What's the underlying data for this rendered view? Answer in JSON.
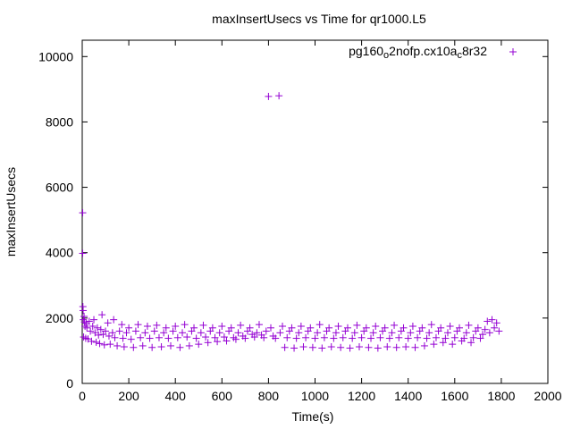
{
  "chart_data": {
    "type": "scatter",
    "title": "maxInsertUsecs vs Time for qr1000.L5",
    "xlabel": "Time(s)",
    "ylabel": "maxInsertUsecs",
    "xlim": [
      0,
      2000
    ],
    "ylim": [
      0,
      10500
    ],
    "xticks": [
      "0",
      "200",
      "400",
      "600",
      "800",
      "1000",
      "1200",
      "1400",
      "1600",
      "1800",
      "2000"
    ],
    "xtick_values": [
      0,
      200,
      400,
      600,
      800,
      1000,
      1200,
      1400,
      1600,
      1800,
      2000
    ],
    "yticks": [
      "0",
      "2000",
      "4000",
      "6000",
      "8000",
      "10000"
    ],
    "ytick_values": [
      0,
      2000,
      4000,
      6000,
      8000,
      10000
    ],
    "grid": false,
    "legend_position": "top-right",
    "marker": "+",
    "series": [
      {
        "name": "pg160_o2nofp.cx10a_c8r32",
        "name_parts": [
          "pg160",
          "o",
          "2nofp.cx10a",
          "c",
          "8r32"
        ],
        "color": "#9400d3",
        "points": [
          [
            2,
            5220
          ],
          [
            2,
            3980
          ],
          [
            3,
            2350
          ],
          [
            4,
            2230
          ],
          [
            5,
            1950
          ],
          [
            6,
            1420
          ],
          [
            8,
            2050
          ],
          [
            10,
            1880
          ],
          [
            12,
            1750
          ],
          [
            15,
            1380
          ],
          [
            18,
            1830
          ],
          [
            20,
            1700
          ],
          [
            25,
            1360
          ],
          [
            30,
            1900
          ],
          [
            35,
            1600
          ],
          [
            40,
            1290
          ],
          [
            45,
            1750
          ],
          [
            50,
            1950
          ],
          [
            55,
            1550
          ],
          [
            60,
            1260
          ],
          [
            65,
            1700
          ],
          [
            70,
            1480
          ],
          [
            75,
            1220
          ],
          [
            80,
            1650
          ],
          [
            85,
            2100
          ],
          [
            90,
            1500
          ],
          [
            95,
            1180
          ],
          [
            100,
            1600
          ],
          [
            110,
            1850
          ],
          [
            115,
            1450
          ],
          [
            120,
            1200
          ],
          [
            130,
            1550
          ],
          [
            135,
            1950
          ],
          [
            140,
            1400
          ],
          [
            150,
            1150
          ],
          [
            160,
            1600
          ],
          [
            170,
            1800
          ],
          [
            175,
            1380
          ],
          [
            180,
            1120
          ],
          [
            190,
            1550
          ],
          [
            200,
            1700
          ],
          [
            210,
            1350
          ],
          [
            220,
            1100
          ],
          [
            230,
            1600
          ],
          [
            240,
            1800
          ],
          [
            250,
            1400
          ],
          [
            260,
            1150
          ],
          [
            270,
            1550
          ],
          [
            280,
            1750
          ],
          [
            290,
            1380
          ],
          [
            300,
            1100
          ],
          [
            310,
            1600
          ],
          [
            320,
            1780
          ],
          [
            330,
            1400
          ],
          [
            340,
            1120
          ],
          [
            350,
            1550
          ],
          [
            360,
            1700
          ],
          [
            370,
            1380
          ],
          [
            380,
            1150
          ],
          [
            390,
            1600
          ],
          [
            400,
            1750
          ],
          [
            410,
            1400
          ],
          [
            420,
            1100
          ],
          [
            430,
            1550
          ],
          [
            440,
            1800
          ],
          [
            450,
            1420
          ],
          [
            460,
            1150
          ],
          [
            470,
            1600
          ],
          [
            480,
            1700
          ],
          [
            490,
            1380
          ],
          [
            500,
            1200
          ],
          [
            510,
            1550
          ],
          [
            520,
            1780
          ],
          [
            530,
            1420
          ],
          [
            540,
            1250
          ],
          [
            550,
            1600
          ],
          [
            560,
            1700
          ],
          [
            570,
            1400
          ],
          [
            580,
            1280
          ],
          [
            590,
            1550
          ],
          [
            600,
            1750
          ],
          [
            610,
            1420
          ],
          [
            620,
            1300
          ],
          [
            630,
            1600
          ],
          [
            640,
            1700
          ],
          [
            650,
            1400
          ],
          [
            660,
            1350
          ],
          [
            670,
            1550
          ],
          [
            680,
            1780
          ],
          [
            690,
            1450
          ],
          [
            700,
            1380
          ],
          [
            710,
            1600
          ],
          [
            720,
            1700
          ],
          [
            730,
            1500
          ],
          [
            740,
            1420
          ],
          [
            750,
            1550
          ],
          [
            760,
            1800
          ],
          [
            770,
            1480
          ],
          [
            780,
            1400
          ],
          [
            790,
            1600
          ],
          [
            800,
            8780
          ],
          [
            810,
            1700
          ],
          [
            820,
            1450
          ],
          [
            830,
            1380
          ],
          [
            845,
            8800
          ],
          [
            850,
            1550
          ],
          [
            860,
            1750
          ],
          [
            870,
            1100
          ],
          [
            880,
            1400
          ],
          [
            890,
            1600
          ],
          [
            900,
            1700
          ],
          [
            910,
            1080
          ],
          [
            920,
            1380
          ],
          [
            930,
            1550
          ],
          [
            940,
            1750
          ],
          [
            950,
            1120
          ],
          [
            960,
            1400
          ],
          [
            970,
            1600
          ],
          [
            980,
            1700
          ],
          [
            990,
            1100
          ],
          [
            1000,
            1380
          ],
          [
            1010,
            1550
          ],
          [
            1020,
            1800
          ],
          [
            1030,
            1080
          ],
          [
            1040,
            1400
          ],
          [
            1050,
            1600
          ],
          [
            1060,
            1700
          ],
          [
            1070,
            1120
          ],
          [
            1080,
            1380
          ],
          [
            1090,
            1550
          ],
          [
            1100,
            1750
          ],
          [
            1110,
            1100
          ],
          [
            1120,
            1400
          ],
          [
            1130,
            1600
          ],
          [
            1140,
            1700
          ],
          [
            1150,
            1080
          ],
          [
            1160,
            1380
          ],
          [
            1170,
            1550
          ],
          [
            1180,
            1780
          ],
          [
            1190,
            1120
          ],
          [
            1200,
            1400
          ],
          [
            1210,
            1600
          ],
          [
            1220,
            1700
          ],
          [
            1230,
            1100
          ],
          [
            1240,
            1380
          ],
          [
            1250,
            1550
          ],
          [
            1260,
            1750
          ],
          [
            1270,
            1080
          ],
          [
            1280,
            1400
          ],
          [
            1290,
            1600
          ],
          [
            1300,
            1700
          ],
          [
            1310,
            1120
          ],
          [
            1320,
            1380
          ],
          [
            1330,
            1550
          ],
          [
            1340,
            1780
          ],
          [
            1350,
            1100
          ],
          [
            1360,
            1400
          ],
          [
            1370,
            1600
          ],
          [
            1380,
            1700
          ],
          [
            1390,
            1120
          ],
          [
            1400,
            1380
          ],
          [
            1410,
            1550
          ],
          [
            1420,
            1750
          ],
          [
            1430,
            1100
          ],
          [
            1440,
            1400
          ],
          [
            1450,
            1600
          ],
          [
            1460,
            1700
          ],
          [
            1470,
            1150
          ],
          [
            1480,
            1380
          ],
          [
            1490,
            1550
          ],
          [
            1500,
            1800
          ],
          [
            1510,
            1200
          ],
          [
            1520,
            1400
          ],
          [
            1530,
            1600
          ],
          [
            1540,
            1700
          ],
          [
            1550,
            1250
          ],
          [
            1560,
            1380
          ],
          [
            1570,
            1550
          ],
          [
            1580,
            1750
          ],
          [
            1590,
            1200
          ],
          [
            1600,
            1400
          ],
          [
            1610,
            1600
          ],
          [
            1620,
            1700
          ],
          [
            1630,
            1300
          ],
          [
            1640,
            1380
          ],
          [
            1650,
            1550
          ],
          [
            1660,
            1780
          ],
          [
            1670,
            1250
          ],
          [
            1680,
            1400
          ],
          [
            1690,
            1600
          ],
          [
            1700,
            1700
          ],
          [
            1710,
            1380
          ],
          [
            1720,
            1500
          ],
          [
            1730,
            1650
          ],
          [
            1740,
            1900
          ],
          [
            1750,
            1550
          ],
          [
            1760,
            1950
          ],
          [
            1770,
            1700
          ],
          [
            1780,
            1850
          ],
          [
            1790,
            1600
          ]
        ]
      }
    ]
  }
}
